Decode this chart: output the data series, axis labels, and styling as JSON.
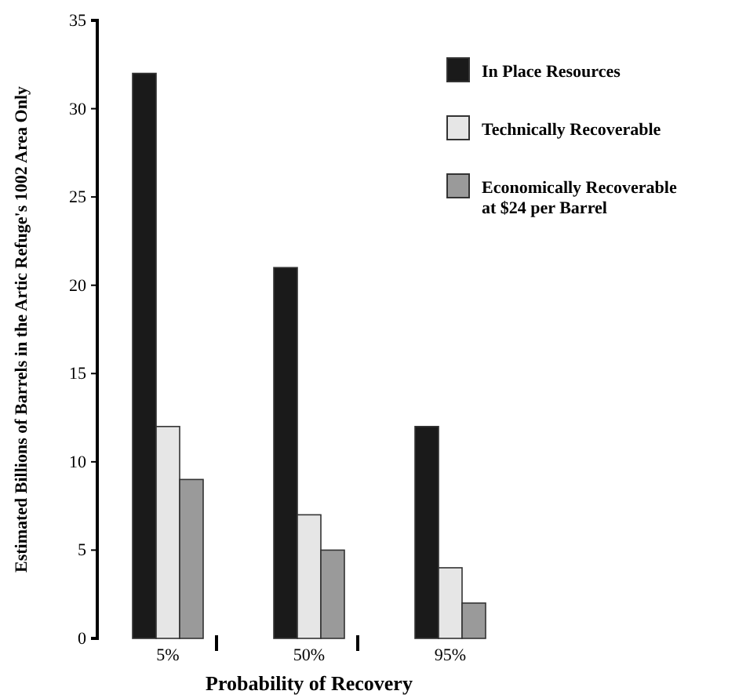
{
  "chart_data": {
    "type": "bar",
    "xlabel": "Probability of Recovery",
    "ylabel": "Estimated Billions of Barrels in the Artic Refuge's 1002 Area Only",
    "categories": [
      "5%",
      "50%",
      "95%"
    ],
    "series": [
      {
        "name": "In Place Resources",
        "color": "#1a1a1a",
        "values": [
          32,
          21,
          12
        ]
      },
      {
        "name": "Technically Recoverable",
        "color": "#e6e6e6",
        "values": [
          12,
          7,
          4
        ]
      },
      {
        "name": "Economically Recoverable at $24 per Barrel",
        "color": "#9a9a9a",
        "values": [
          9,
          5,
          2
        ]
      }
    ],
    "ylim": [
      0,
      35
    ],
    "yticks": [
      0,
      5,
      10,
      15,
      20,
      25,
      30,
      35
    ],
    "grid": false,
    "legend": "top right"
  }
}
